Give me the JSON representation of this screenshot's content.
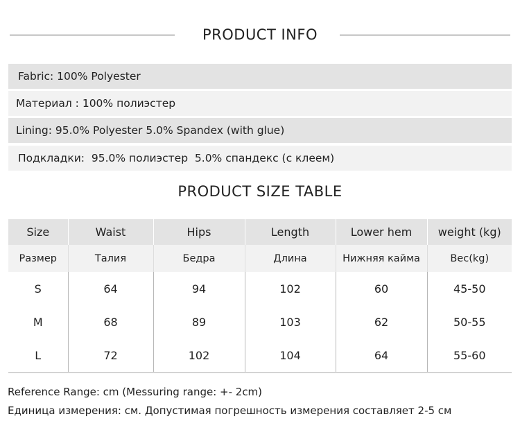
{
  "info_title": "PRODUCT INFO",
  "info_rows": [
    "Fabric: 100% Polyester",
    "Материал : 100% полиэстер",
    "Lining: 95.0% Polyester 5.0% Spandex (with glue)",
    "Подкладки:  95.0% полиэстер  5.0% спандекс (с клеем)"
  ],
  "size_title": "PRODUCT SIZE TABLE",
  "size_table": {
    "headers_en": [
      "Size",
      "Waist",
      "Hips",
      "Length",
      "Lower hem",
      "weight (kg)"
    ],
    "headers_ru": [
      "Размер",
      "Талия",
      "Бедра",
      "Длина",
      "Нижняя кайма",
      "Вес(kg)"
    ],
    "rows": [
      [
        "S",
        "64",
        "94",
        "102",
        "60",
        "45-50"
      ],
      [
        "M",
        "68",
        "89",
        "103",
        "62",
        "50-55"
      ],
      [
        "L",
        "72",
        "102",
        "104",
        "64",
        "55-60"
      ]
    ]
  },
  "footer": {
    "line1": "Reference Range: cm (Messuring range: +- 2cm)",
    "line2": "Единица измерения: см. Допустимая погрешность измерения составляет 2-5 см"
  }
}
